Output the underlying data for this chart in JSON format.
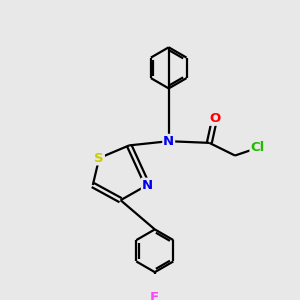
{
  "bg_color": "#e8e8e8",
  "line_color": "#000000",
  "bond_width": 1.6,
  "atom_colors": {
    "N": "#0000ee",
    "O": "#ff0000",
    "S": "#cccc00",
    "F": "#ff44ff",
    "Cl": "#22bb00"
  },
  "figsize": [
    3.0,
    3.0
  ],
  "dpi": 100
}
